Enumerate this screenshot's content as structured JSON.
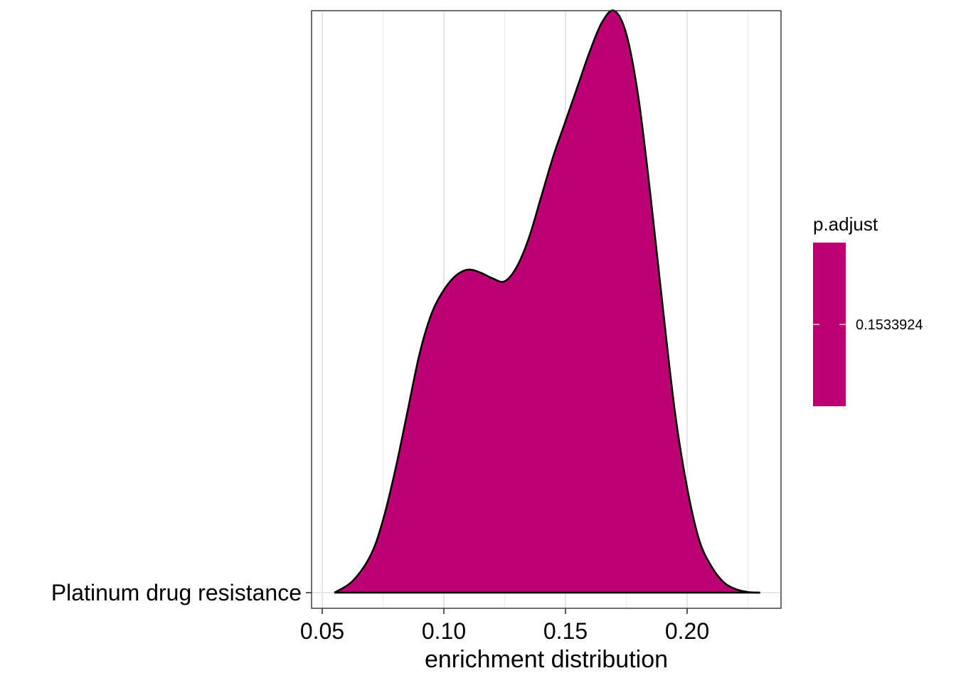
{
  "chart_data": {
    "type": "area",
    "subtype": "ridgeline-density",
    "xlabel": "enrichment distribution",
    "ylabel": "",
    "xlim": [
      0.05,
      0.235
    ],
    "x_ticks": [
      0.05,
      0.1,
      0.15,
      0.2
    ],
    "x_tick_labels": [
      "0.05",
      "0.10",
      "0.15",
      "0.20"
    ],
    "categories": [
      "Platinum drug resistance"
    ],
    "grid": "on",
    "fill_color": "#BC0073",
    "outline_color": "#000000",
    "series": [
      {
        "category": "Platinum drug resistance",
        "p_adjust": 0.1533924,
        "density_x": [
          0.055,
          0.0625,
          0.07,
          0.075,
          0.08,
          0.085,
          0.09,
          0.095,
          0.1,
          0.105,
          0.11,
          0.115,
          0.12,
          0.125,
          0.13,
          0.135,
          0.14,
          0.145,
          0.15,
          0.155,
          0.16,
          0.165,
          0.17,
          0.175,
          0.18,
          0.185,
          0.19,
          0.195,
          0.2,
          0.205,
          0.21,
          0.215,
          0.22,
          0.225,
          0.23
        ],
        "density_y": [
          0.0,
          0.02,
          0.065,
          0.125,
          0.21,
          0.31,
          0.41,
          0.48,
          0.52,
          0.545,
          0.555,
          0.55,
          0.54,
          0.535,
          0.56,
          0.61,
          0.68,
          0.75,
          0.81,
          0.87,
          0.93,
          0.98,
          1.0,
          0.96,
          0.85,
          0.68,
          0.49,
          0.31,
          0.18,
          0.09,
          0.045,
          0.018,
          0.006,
          0.001,
          0.0
        ]
      }
    ],
    "legend": {
      "title": "p.adjust",
      "labels": [
        "0.1533924"
      ],
      "placement": "right"
    }
  }
}
